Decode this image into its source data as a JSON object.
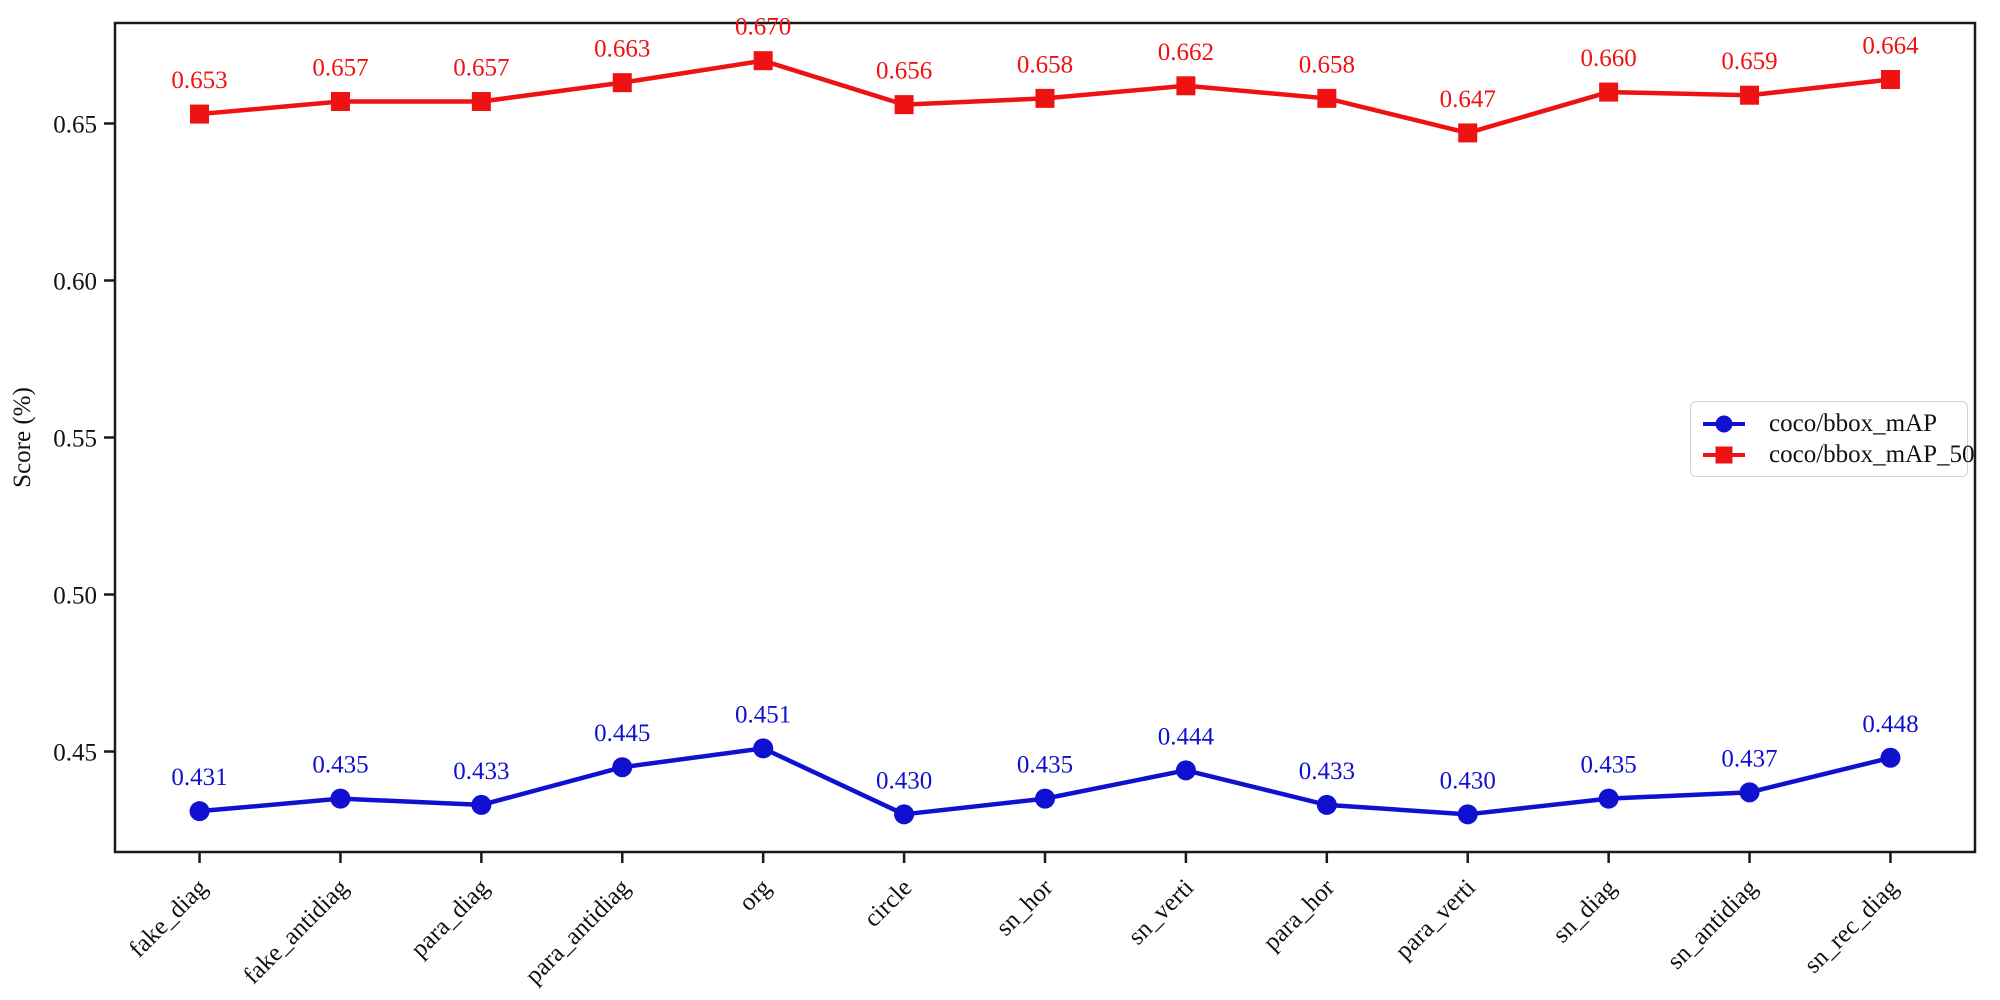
{
  "chart_data": {
    "type": "line",
    "title": "",
    "xlabel": "",
    "ylabel": "Score (%)",
    "categories": [
      "fake_diag",
      "fake_antidiag",
      "para_diag",
      "para_antidiag",
      "org",
      "circle",
      "sn_hor",
      "sn_verti",
      "para_hor",
      "para_verti",
      "sn_diag",
      "sn_antidiag",
      "sn_rec_diag"
    ],
    "series": [
      {
        "name": "coco/bbox_mAP",
        "color": "#1010d0",
        "marker": "circle",
        "values": [
          0.431,
          0.435,
          0.433,
          0.445,
          0.451,
          0.43,
          0.435,
          0.444,
          0.433,
          0.43,
          0.435,
          0.437,
          0.448
        ]
      },
      {
        "name": "coco/bbox_mAP_50",
        "color": "#ee1212",
        "marker": "square",
        "values": [
          0.653,
          0.657,
          0.657,
          0.663,
          0.67,
          0.656,
          0.658,
          0.662,
          0.658,
          0.647,
          0.66,
          0.659,
          0.664
        ]
      }
    ],
    "yticks": [
      0.45,
      0.5,
      0.55,
      0.6,
      0.65
    ],
    "ylim": [
      0.418,
      0.682
    ],
    "grid": false,
    "value_labels": true,
    "value_label_decimals": 3,
    "x_tick_rotation": 45,
    "legend_position": "right-center",
    "axis_color": "#1a1a1a",
    "text_color": "#111111",
    "background": "#ffffff"
  }
}
